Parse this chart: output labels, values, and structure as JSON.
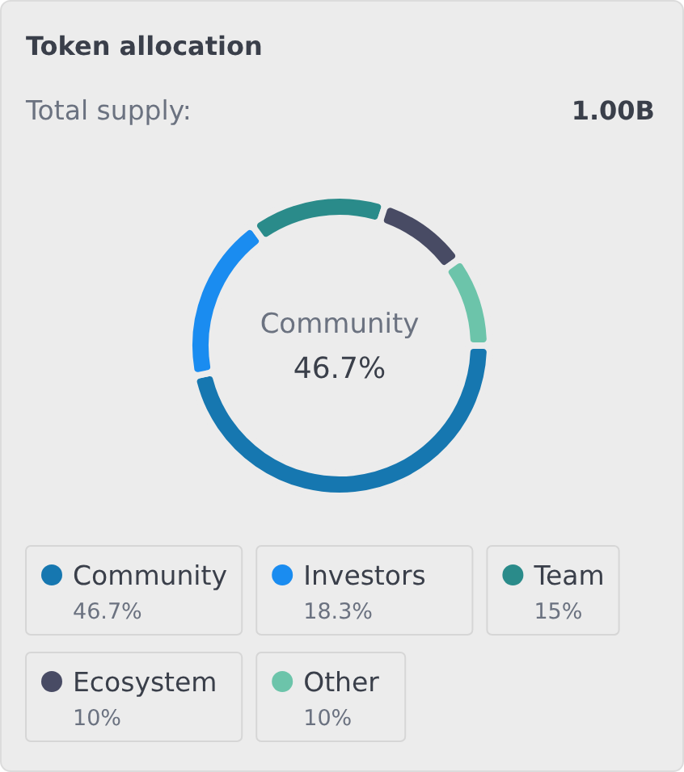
{
  "chart_data": {
    "type": "donut",
    "title": "Token allocation",
    "annotations": [
      "Total supply:",
      "1.00B"
    ],
    "categories": [
      "Community",
      "Investors",
      "Team",
      "Ecosystem",
      "Other"
    ],
    "values": [
      46.7,
      18.3,
      15,
      10,
      10
    ],
    "value_labels": [
      "46.7%",
      "18.3%",
      "15%",
      "10%",
      "10%"
    ],
    "colors": [
      "#1677b0",
      "#1a8cf0",
      "#2a8b8a",
      "#484b64",
      "#6cc4aa"
    ],
    "legend": "bottom"
  }
}
